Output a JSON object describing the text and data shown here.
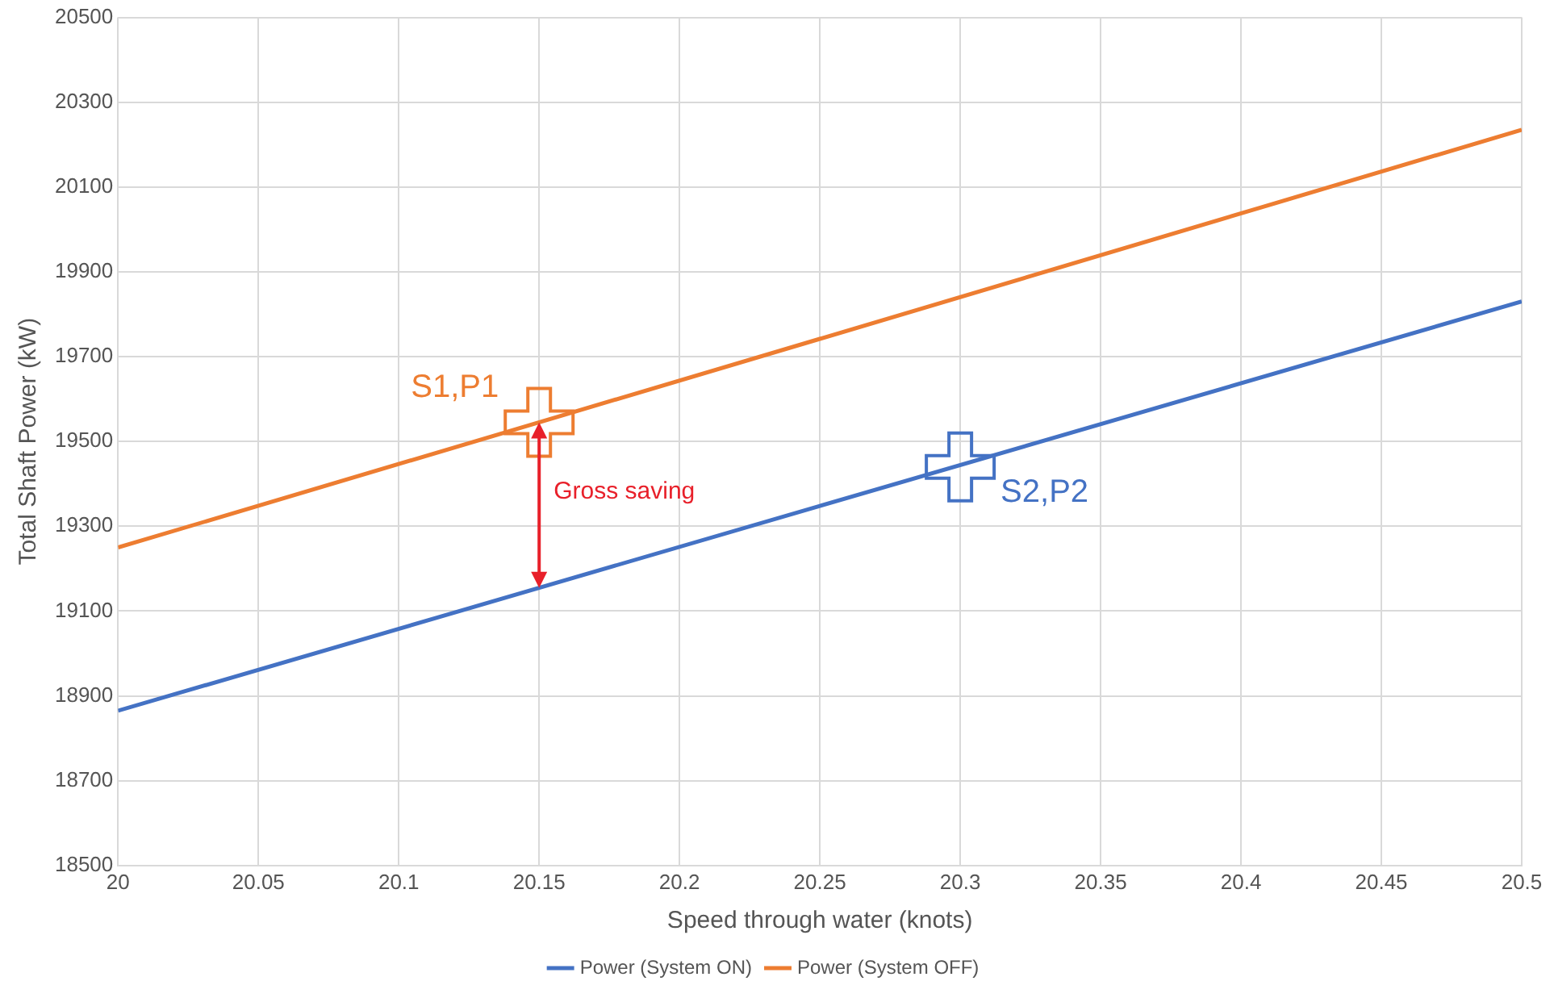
{
  "chart_data": {
    "type": "line",
    "xlabel": "Speed through water (knots)",
    "ylabel": "Total Shaft Power (kW)",
    "xlim": [
      20,
      20.5
    ],
    "xticks": [
      20,
      20.05,
      20.1,
      20.15,
      20.2,
      20.25,
      20.3,
      20.35,
      20.4,
      20.45,
      20.5
    ],
    "ylim": [
      18500,
      20500
    ],
    "yticks": [
      18500,
      18700,
      18900,
      19100,
      19300,
      19500,
      19700,
      19900,
      20100,
      20300,
      20500
    ],
    "series": [
      {
        "name": "Power (System ON)",
        "color": "#4472c4",
        "x": [
          20,
          20.25,
          20.5
        ],
        "values": [
          18865,
          19348,
          19830
        ]
      },
      {
        "name": "Power (System OFF)",
        "color": "#ed7d31",
        "x": [
          20,
          20.25,
          20.5
        ],
        "values": [
          19250,
          19742,
          20235
        ]
      }
    ],
    "annotations": [
      {
        "text": "S1,P1",
        "x": 20.15,
        "y": 19545
      },
      {
        "text": "S2,P2",
        "x": 20.3,
        "y": 19440
      },
      "Gross saving"
    ],
    "grid": true,
    "legend": "bottom"
  }
}
